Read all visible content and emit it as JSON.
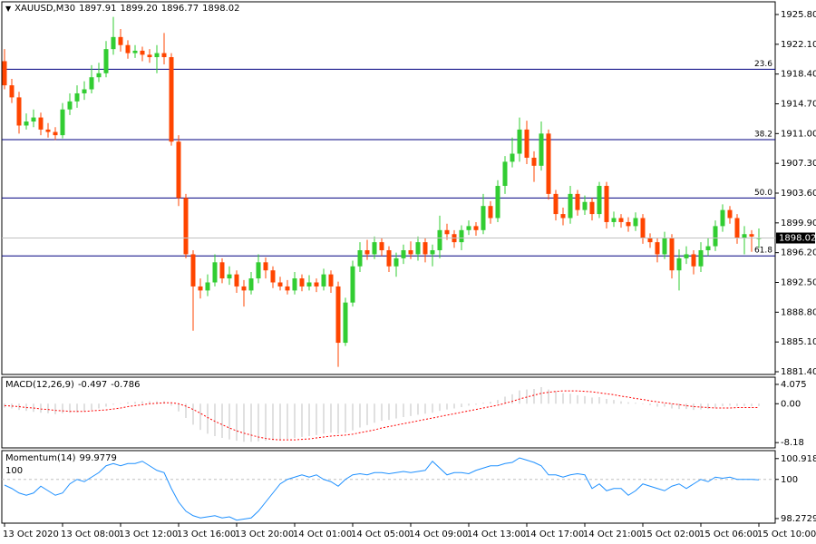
{
  "chart_data": [
    {
      "type": "candlestick",
      "symbol": "XAUUSD,M30",
      "last_labels": {
        "open": "1897.91",
        "high": "1899.20",
        "low": "1896.77",
        "close": "1898.02"
      },
      "categories": [
        "13 Oct 2020",
        null,
        null,
        null,
        null,
        null,
        null,
        null,
        "13 Oct 08:00",
        null,
        null,
        null,
        null,
        null,
        null,
        null,
        "13 Oct 12:00",
        null,
        null,
        null,
        null,
        null,
        null,
        null,
        "13 Oct 16:00",
        null,
        null,
        null,
        null,
        null,
        null,
        null,
        "13 Oct 20:00",
        null,
        null,
        null,
        null,
        null,
        null,
        null,
        "14 Oct 01:00",
        null,
        null,
        null,
        null,
        null,
        null,
        null,
        "14 Oct 05:00",
        null,
        null,
        null,
        null,
        null,
        null,
        null,
        "14 Oct 09:00",
        null,
        null,
        null,
        null,
        null,
        null,
        null,
        "14 Oct 13:00",
        null,
        null,
        null,
        null,
        null,
        null,
        null,
        "14 Oct 17:00",
        null,
        null,
        null,
        null,
        null,
        null,
        null,
        "14 Oct 21:00",
        null,
        null,
        null,
        null,
        null,
        null,
        null,
        "15 Oct 02:00",
        null,
        null,
        null,
        null,
        null,
        null,
        null,
        "15 Oct 06:00",
        null,
        null,
        null,
        null,
        null,
        null,
        null,
        "15 Oct 10:00"
      ],
      "open": [
        1920.0,
        1917.0,
        1915.5,
        1912.0,
        1912.5,
        1913.0,
        1911.5,
        1911.2,
        1910.8,
        1914.0,
        1915.0,
        1916.0,
        1916.5,
        1918.0,
        1918.5,
        1921.5,
        1923.0,
        1922.0,
        1921.0,
        1921.3,
        1920.8,
        1920.5,
        1921.0,
        1920.5,
        1910.0,
        1903.0,
        1896.0,
        1892.0,
        1891.5,
        1892.5,
        1895.0,
        1893.0,
        1893.5,
        1892.0,
        1891.5,
        1893.0,
        1895.0,
        1894.0,
        1892.5,
        1892.0,
        1891.5,
        1893.0,
        1892.0,
        1892.5,
        1892.0,
        1893.5,
        1892.0,
        1885.0,
        1890.0,
        1894.5,
        1896.5,
        1896.0,
        1897.5,
        1896.5,
        1894.5,
        1895.5,
        1896.5,
        1896.0,
        1897.5,
        1896.0,
        1896.5,
        1899.0,
        1898.5,
        1897.5,
        1899.0,
        1899.5,
        1899.0,
        1902.0,
        1900.5,
        1904.5,
        1907.5,
        1908.5,
        1911.5,
        1908.0,
        1907.0,
        1911.0,
        1903.5,
        1901.0,
        1900.5,
        1903.5,
        1901.5,
        1902.5,
        1901.0,
        1904.5,
        1900.0,
        1900.5,
        1900.0,
        1899.5,
        1900.5,
        1898.0,
        1897.5,
        1896.0,
        1898.0,
        1894.0,
        1895.5,
        1896.0,
        1894.5,
        1896.5,
        1897.0,
        1899.5,
        1901.5,
        1900.5,
        1898.0,
        1898.5,
        1897.91
      ],
      "high": [
        1921.5,
        1917.8,
        1916.2,
        1913.5,
        1914.0,
        1913.6,
        1912.3,
        1911.8,
        1914.8,
        1916.0,
        1917.0,
        1917.5,
        1919.5,
        1919.8,
        1922.5,
        1925.5,
        1924.0,
        1922.6,
        1922.0,
        1921.8,
        1921.5,
        1922.0,
        1923.5,
        1921.0,
        1910.8,
        1903.5,
        1896.5,
        1893.0,
        1893.5,
        1896.0,
        1895.5,
        1894.5,
        1894.0,
        1892.8,
        1893.8,
        1896.0,
        1895.6,
        1894.5,
        1893.2,
        1892.8,
        1893.8,
        1893.5,
        1893.4,
        1893.0,
        1894.2,
        1894.0,
        1892.6,
        1890.6,
        1895.2,
        1897.5,
        1897.8,
        1898.2,
        1898.0,
        1897.0,
        1896.2,
        1897.2,
        1897.6,
        1898.2,
        1898.0,
        1897.2,
        1900.8,
        1899.8,
        1899.0,
        1899.6,
        1900.2,
        1900.0,
        1903.5,
        1902.6,
        1905.2,
        1908.2,
        1910.5,
        1913.0,
        1912.6,
        1908.8,
        1912.5,
        1911.5,
        1904.0,
        1901.8,
        1904.5,
        1904.0,
        1903.3,
        1903.0,
        1905.0,
        1905.0,
        1901.3,
        1901.0,
        1900.6,
        1901.2,
        1901.0,
        1898.6,
        1898.0,
        1898.8,
        1898.5,
        1896.6,
        1897.0,
        1896.5,
        1897.5,
        1898.0,
        1900.2,
        1902.2,
        1902.0,
        1901.0,
        1899.5,
        1899.0,
        1899.2
      ],
      "low": [
        1916.5,
        1914.8,
        1911.0,
        1911.5,
        1911.8,
        1910.8,
        1910.5,
        1910.2,
        1910.4,
        1913.3,
        1914.2,
        1915.2,
        1916.0,
        1917.4,
        1918.0,
        1920.8,
        1921.2,
        1920.3,
        1920.4,
        1920.0,
        1919.8,
        1918.5,
        1919.6,
        1909.5,
        1902.0,
        1895.5,
        1886.5,
        1890.5,
        1890.8,
        1892.0,
        1892.4,
        1892.2,
        1891.2,
        1889.5,
        1891.0,
        1892.4,
        1893.0,
        1891.8,
        1891.5,
        1891.0,
        1891.0,
        1891.4,
        1891.5,
        1891.3,
        1891.5,
        1891.2,
        1882.0,
        1884.6,
        1889.5,
        1893.8,
        1895.3,
        1895.4,
        1895.8,
        1893.8,
        1893.2,
        1894.8,
        1895.4,
        1895.2,
        1895.0,
        1894.5,
        1895.5,
        1897.8,
        1896.8,
        1896.5,
        1898.4,
        1898.3,
        1898.5,
        1899.8,
        1900.0,
        1903.5,
        1906.8,
        1907.5,
        1907.2,
        1905.0,
        1906.4,
        1902.8,
        1900.2,
        1899.6,
        1899.8,
        1900.8,
        1900.9,
        1900.2,
        1900.5,
        1899.2,
        1899.4,
        1899.3,
        1898.8,
        1898.9,
        1897.3,
        1896.8,
        1895.0,
        1895.4,
        1893.0,
        1891.5,
        1894.8,
        1893.5,
        1893.8,
        1895.8,
        1896.4,
        1898.8,
        1899.8,
        1897.3,
        1896.0,
        1896.3,
        1896.77
      ],
      "close": [
        1917.0,
        1915.5,
        1912.0,
        1912.5,
        1913.0,
        1911.5,
        1911.2,
        1910.8,
        1914.0,
        1915.0,
        1916.0,
        1916.5,
        1918.0,
        1918.5,
        1921.5,
        1923.0,
        1922.0,
        1921.0,
        1921.3,
        1920.8,
        1920.5,
        1921.0,
        1920.5,
        1910.0,
        1903.0,
        1896.0,
        1892.0,
        1891.5,
        1892.5,
        1895.0,
        1893.0,
        1893.5,
        1892.0,
        1891.5,
        1893.0,
        1895.0,
        1894.0,
        1892.5,
        1892.0,
        1891.5,
        1893.0,
        1892.0,
        1892.5,
        1892.0,
        1893.5,
        1892.0,
        1885.0,
        1890.0,
        1894.5,
        1896.5,
        1896.0,
        1897.5,
        1896.5,
        1894.5,
        1895.5,
        1896.5,
        1896.0,
        1897.5,
        1896.0,
        1896.5,
        1899.0,
        1898.5,
        1897.5,
        1899.0,
        1899.5,
        1899.0,
        1902.0,
        1900.5,
        1904.5,
        1907.5,
        1908.5,
        1911.5,
        1908.0,
        1907.0,
        1911.0,
        1903.5,
        1901.0,
        1900.5,
        1903.5,
        1901.5,
        1902.5,
        1901.0,
        1904.5,
        1900.0,
        1900.5,
        1900.0,
        1899.5,
        1900.5,
        1898.0,
        1897.5,
        1896.0,
        1898.0,
        1894.0,
        1895.5,
        1896.0,
        1894.5,
        1896.5,
        1897.0,
        1899.5,
        1901.5,
        1900.5,
        1898.0,
        1898.5,
        1898.2,
        1898.02
      ],
      "up_color": "#32cd32",
      "down_color": "#ff4500",
      "ylim": [
        1881.4,
        1925.8
      ],
      "yticks": [
        {
          "value": 1925.8,
          "label": "1925.80"
        },
        {
          "value": 1922.1,
          "label": "1922.10"
        },
        {
          "value": 1918.4,
          "label": "1918.40"
        },
        {
          "value": 1914.7,
          "label": "1914.70"
        },
        {
          "value": 1911.0,
          "label": "1911.00"
        },
        {
          "value": 1907.3,
          "label": "1907.30"
        },
        {
          "value": 1903.6,
          "label": "1903.60"
        },
        {
          "value": 1899.9,
          "label": "1899.90"
        },
        {
          "value": 1896.2,
          "label": "1896.20"
        },
        {
          "value": 1892.5,
          "label": "1892.50"
        },
        {
          "value": 1888.8,
          "label": "1888.80"
        },
        {
          "value": 1885.1,
          "label": "1885.10"
        },
        {
          "value": 1881.4,
          "label": "1881.40"
        }
      ],
      "levels": [
        {
          "label": "23.6",
          "value": 1919.0
        },
        {
          "label": "38.2",
          "value": 1910.25
        },
        {
          "label": "50.0",
          "value": 1903.0
        },
        {
          "label": "61.8",
          "value": 1895.8
        }
      ],
      "level_color": "#000080"
    },
    {
      "type": "macd",
      "title": "MACD(12,26,9)",
      "histogram": [
        -0.8,
        -1.0,
        -1.3,
        -1.5,
        -1.7,
        -1.9,
        -2.0,
        -2.2,
        -2.0,
        -1.9,
        -1.8,
        -1.6,
        -1.3,
        -1.0,
        -0.6,
        -0.2,
        0.1,
        0.3,
        0.4,
        0.5,
        0.5,
        0.5,
        0.5,
        -0.4,
        -1.6,
        -3.0,
        -4.4,
        -5.5,
        -6.3,
        -6.8,
        -7.2,
        -7.5,
        -7.8,
        -8.0,
        -8.0,
        -7.9,
        -7.8,
        -7.7,
        -7.6,
        -7.4,
        -7.2,
        -7.0,
        -6.8,
        -6.6,
        -6.3,
        -6.1,
        -6.3,
        -6.1,
        -5.6,
        -5.0,
        -4.5,
        -4.0,
        -3.6,
        -3.4,
        -3.1,
        -2.8,
        -2.6,
        -2.3,
        -2.1,
        -1.9,
        -1.5,
        -1.2,
        -1.0,
        -0.7,
        -0.4,
        -0.2,
        0.2,
        0.4,
        0.8,
        1.5,
        2.0,
        2.8,
        3.0,
        3.1,
        3.5,
        3.0,
        2.6,
        2.2,
        2.1,
        1.8,
        1.6,
        1.3,
        1.4,
        1.0,
        0.8,
        0.5,
        0.3,
        0.2,
        -0.1,
        -0.3,
        -0.6,
        -0.6,
        -1.0,
        -1.1,
        -1.1,
        -1.3,
        -1.2,
        -1.1,
        -0.8,
        -0.5,
        -0.4,
        -0.5,
        -0.5,
        -0.5,
        -0.497
      ],
      "signal": [
        -0.4,
        -0.5,
        -0.6,
        -0.8,
        -0.9,
        -1.1,
        -1.2,
        -1.4,
        -1.5,
        -1.6,
        -1.6,
        -1.6,
        -1.5,
        -1.4,
        -1.3,
        -1.1,
        -0.9,
        -0.6,
        -0.4,
        -0.2,
        0.0,
        0.1,
        0.2,
        0.2,
        0.0,
        -0.5,
        -1.2,
        -2.0,
        -2.9,
        -3.7,
        -4.4,
        -5.1,
        -5.7,
        -6.2,
        -6.6,
        -7.0,
        -7.3,
        -7.5,
        -7.6,
        -7.6,
        -7.6,
        -7.5,
        -7.4,
        -7.2,
        -7.0,
        -6.8,
        -6.7,
        -6.6,
        -6.4,
        -6.1,
        -5.8,
        -5.5,
        -5.1,
        -4.8,
        -4.5,
        -4.2,
        -3.9,
        -3.6,
        -3.3,
        -3.0,
        -2.7,
        -2.4,
        -2.1,
        -1.8,
        -1.5,
        -1.2,
        -0.9,
        -0.6,
        -0.3,
        0.1,
        0.5,
        1.0,
        1.4,
        1.8,
        2.2,
        2.4,
        2.6,
        2.7,
        2.7,
        2.7,
        2.6,
        2.5,
        2.3,
        2.1,
        1.9,
        1.6,
        1.4,
        1.1,
        0.9,
        0.6,
        0.4,
        0.2,
        0.0,
        -0.2,
        -0.4,
        -0.6,
        -0.7,
        -0.8,
        -0.9,
        -0.9,
        -0.9,
        -0.8,
        -0.8,
        -0.8,
        -0.786
      ],
      "histogram_color": "#c0c0c0",
      "signal_color": "#ff0000",
      "ylim": [
        -9.1,
        5.4
      ],
      "yticks": [
        4.075,
        {
          "value": 0,
          "label": "0.00"
        },
        -8.18
      ]
    },
    {
      "type": "line",
      "title": "Momentum(14)",
      "values": [
        99.75,
        99.6,
        99.4,
        99.3,
        99.4,
        99.7,
        99.5,
        99.3,
        99.4,
        99.8,
        100.0,
        99.9,
        100.1,
        100.3,
        100.6,
        100.7,
        100.6,
        100.7,
        100.7,
        100.8,
        100.6,
        100.4,
        100.3,
        99.6,
        99.0,
        98.6,
        98.4,
        98.3,
        98.35,
        98.4,
        98.3,
        98.35,
        98.2,
        98.25,
        98.3,
        98.6,
        99.0,
        99.4,
        99.8,
        100.0,
        100.1,
        100.2,
        100.1,
        100.2,
        100.0,
        99.9,
        99.7,
        100.0,
        100.2,
        100.25,
        100.2,
        100.3,
        100.3,
        100.25,
        100.3,
        100.35,
        100.3,
        100.35,
        100.4,
        100.8,
        100.5,
        100.2,
        100.3,
        100.3,
        100.25,
        100.4,
        100.5,
        100.6,
        100.6,
        100.7,
        100.75,
        100.95,
        100.85,
        100.75,
        100.6,
        100.2,
        100.2,
        100.1,
        100.2,
        100.25,
        100.2,
        99.6,
        99.8,
        99.5,
        99.6,
        99.6,
        99.3,
        99.5,
        99.8,
        99.7,
        99.6,
        99.5,
        99.7,
        99.8,
        99.6,
        99.8,
        100.0,
        99.9,
        100.1,
        100.05,
        100.1,
        100.0,
        100.0,
        100.0,
        99.9779
      ],
      "color": "#1e90ff",
      "level": 100,
      "ylim": [
        98.11,
        101.23
      ],
      "yticks": [
        100.9183,
        100,
        98.2729
      ]
    }
  ]
}
